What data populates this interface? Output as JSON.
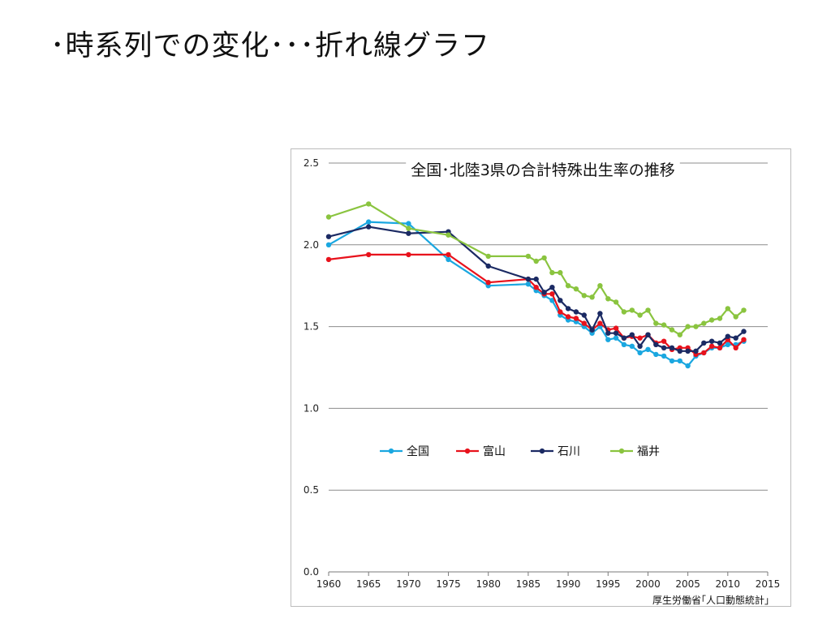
{
  "slide": {
    "title": "･時系列での変化･･･折れ線グラフ"
  },
  "chart_data": {
    "type": "line",
    "title": "全国･北陸3県の合計特殊出生率の推移",
    "source": "厚生労働省｢人口動態統計｣",
    "xlabel": "",
    "ylabel": "",
    "xlim": [
      1960,
      2015
    ],
    "ylim": [
      0,
      2.5
    ],
    "xticks": [
      1960,
      1965,
      1970,
      1975,
      1980,
      1985,
      1990,
      1995,
      2000,
      2005,
      2010,
      2015
    ],
    "yticks": [
      "0.0",
      "0.5",
      "1.0",
      "1.5",
      "2.0",
      "2.5"
    ],
    "grid": true,
    "legend_position": "center-left",
    "series": [
      {
        "name": "全国",
        "color": "#1aa7e0",
        "x": [
          1960,
          1965,
          1970,
          1975,
          1980,
          1985,
          1986,
          1987,
          1988,
          1989,
          1990,
          1991,
          1992,
          1993,
          1994,
          1995,
          1996,
          1997,
          1998,
          1999,
          2000,
          2001,
          2002,
          2003,
          2004,
          2005,
          2006,
          2007,
          2008,
          2009,
          2010,
          2011,
          2012
        ],
        "y": [
          2.0,
          2.14,
          2.13,
          1.91,
          1.75,
          1.76,
          1.72,
          1.69,
          1.66,
          1.57,
          1.54,
          1.53,
          1.5,
          1.46,
          1.5,
          1.42,
          1.43,
          1.39,
          1.38,
          1.34,
          1.36,
          1.33,
          1.32,
          1.29,
          1.29,
          1.26,
          1.32,
          1.34,
          1.37,
          1.37,
          1.39,
          1.39,
          1.41
        ]
      },
      {
        "name": "富山",
        "color": "#e8121c",
        "x": [
          1960,
          1965,
          1970,
          1975,
          1980,
          1985,
          1986,
          1987,
          1988,
          1989,
          1990,
          1991,
          1992,
          1993,
          1994,
          1995,
          1996,
          1997,
          1998,
          1999,
          2000,
          2001,
          2002,
          2003,
          2004,
          2005,
          2006,
          2007,
          2008,
          2009,
          2010,
          2011,
          2012
        ],
        "y": [
          1.91,
          1.94,
          1.94,
          1.94,
          1.77,
          1.79,
          1.74,
          1.7,
          1.7,
          1.59,
          1.56,
          1.55,
          1.52,
          1.48,
          1.52,
          1.48,
          1.49,
          1.43,
          1.44,
          1.43,
          1.45,
          1.4,
          1.41,
          1.36,
          1.37,
          1.37,
          1.33,
          1.34,
          1.38,
          1.37,
          1.42,
          1.37,
          1.42
        ]
      },
      {
        "name": "石川",
        "color": "#1b2a63",
        "x": [
          1960,
          1965,
          1970,
          1975,
          1980,
          1985,
          1986,
          1987,
          1988,
          1989,
          1990,
          1991,
          1992,
          1993,
          1994,
          1995,
          1996,
          1997,
          1998,
          1999,
          2000,
          2001,
          2002,
          2003,
          2004,
          2005,
          2006,
          2007,
          2008,
          2009,
          2010,
          2011,
          2012
        ],
        "y": [
          2.05,
          2.11,
          2.07,
          2.08,
          1.87,
          1.79,
          1.79,
          1.71,
          1.74,
          1.66,
          1.61,
          1.59,
          1.57,
          1.48,
          1.58,
          1.46,
          1.46,
          1.43,
          1.45,
          1.38,
          1.45,
          1.39,
          1.37,
          1.37,
          1.35,
          1.35,
          1.35,
          1.4,
          1.41,
          1.4,
          1.44,
          1.43,
          1.47
        ]
      },
      {
        "name": "福井",
        "color": "#8ac43f",
        "x": [
          1960,
          1965,
          1970,
          1975,
          1980,
          1985,
          1986,
          1987,
          1988,
          1989,
          1990,
          1991,
          1992,
          1993,
          1994,
          1995,
          1996,
          1997,
          1998,
          1999,
          2000,
          2001,
          2002,
          2003,
          2004,
          2005,
          2006,
          2007,
          2008,
          2009,
          2010,
          2011,
          2012
        ],
        "y": [
          2.17,
          2.25,
          2.1,
          2.06,
          1.93,
          1.93,
          1.9,
          1.92,
          1.83,
          1.83,
          1.75,
          1.73,
          1.69,
          1.68,
          1.75,
          1.67,
          1.65,
          1.59,
          1.6,
          1.57,
          1.6,
          1.52,
          1.51,
          1.48,
          1.45,
          1.5,
          1.5,
          1.52,
          1.54,
          1.55,
          1.61,
          1.56,
          1.6
        ]
      }
    ]
  }
}
